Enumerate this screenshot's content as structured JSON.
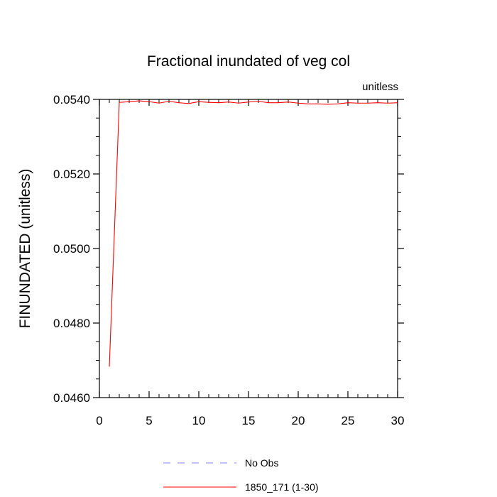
{
  "chart_data": {
    "type": "line",
    "title": "Fractional inundated of veg col",
    "units_label": "unitless",
    "xlabel": "",
    "ylabel": "FINUNDATED  (unitless)",
    "xlim": [
      0,
      30
    ],
    "ylim": [
      0.046,
      0.054
    ],
    "x_ticks": [
      0,
      5,
      10,
      15,
      20,
      25,
      30
    ],
    "x_tick_labels": [
      "0",
      "5",
      "10",
      "15",
      "20",
      "25",
      "30"
    ],
    "y_ticks": [
      0.046,
      0.048,
      0.05,
      0.052,
      0.054
    ],
    "y_tick_labels": [
      "0.0460",
      "0.0480",
      "0.0500",
      "0.0520",
      "0.0540"
    ],
    "grid": false,
    "legend_position": "bottom",
    "series": [
      {
        "name": "No Obs",
        "color": "#8080ff",
        "dash": "dashed",
        "x": [],
        "y": []
      },
      {
        "name": "1850_171 (1-30)",
        "color": "#ff0000",
        "dash": "solid",
        "x": [
          1,
          2,
          3,
          4,
          5,
          6,
          7,
          8,
          9,
          10,
          11,
          12,
          13,
          14,
          15,
          16,
          17,
          18,
          19,
          20,
          21,
          22,
          23,
          24,
          25,
          26,
          27,
          28,
          29,
          30
        ],
        "y": [
          0.04683,
          0.05392,
          0.05394,
          0.05396,
          0.05394,
          0.0539,
          0.05395,
          0.05391,
          0.05389,
          0.05394,
          0.05392,
          0.05391,
          0.05393,
          0.0539,
          0.05393,
          0.05395,
          0.05391,
          0.05391,
          0.05393,
          0.0539,
          0.05388,
          0.05388,
          0.05387,
          0.05388,
          0.05391,
          0.0539,
          0.0539,
          0.05391,
          0.0539,
          0.05391
        ]
      }
    ]
  }
}
